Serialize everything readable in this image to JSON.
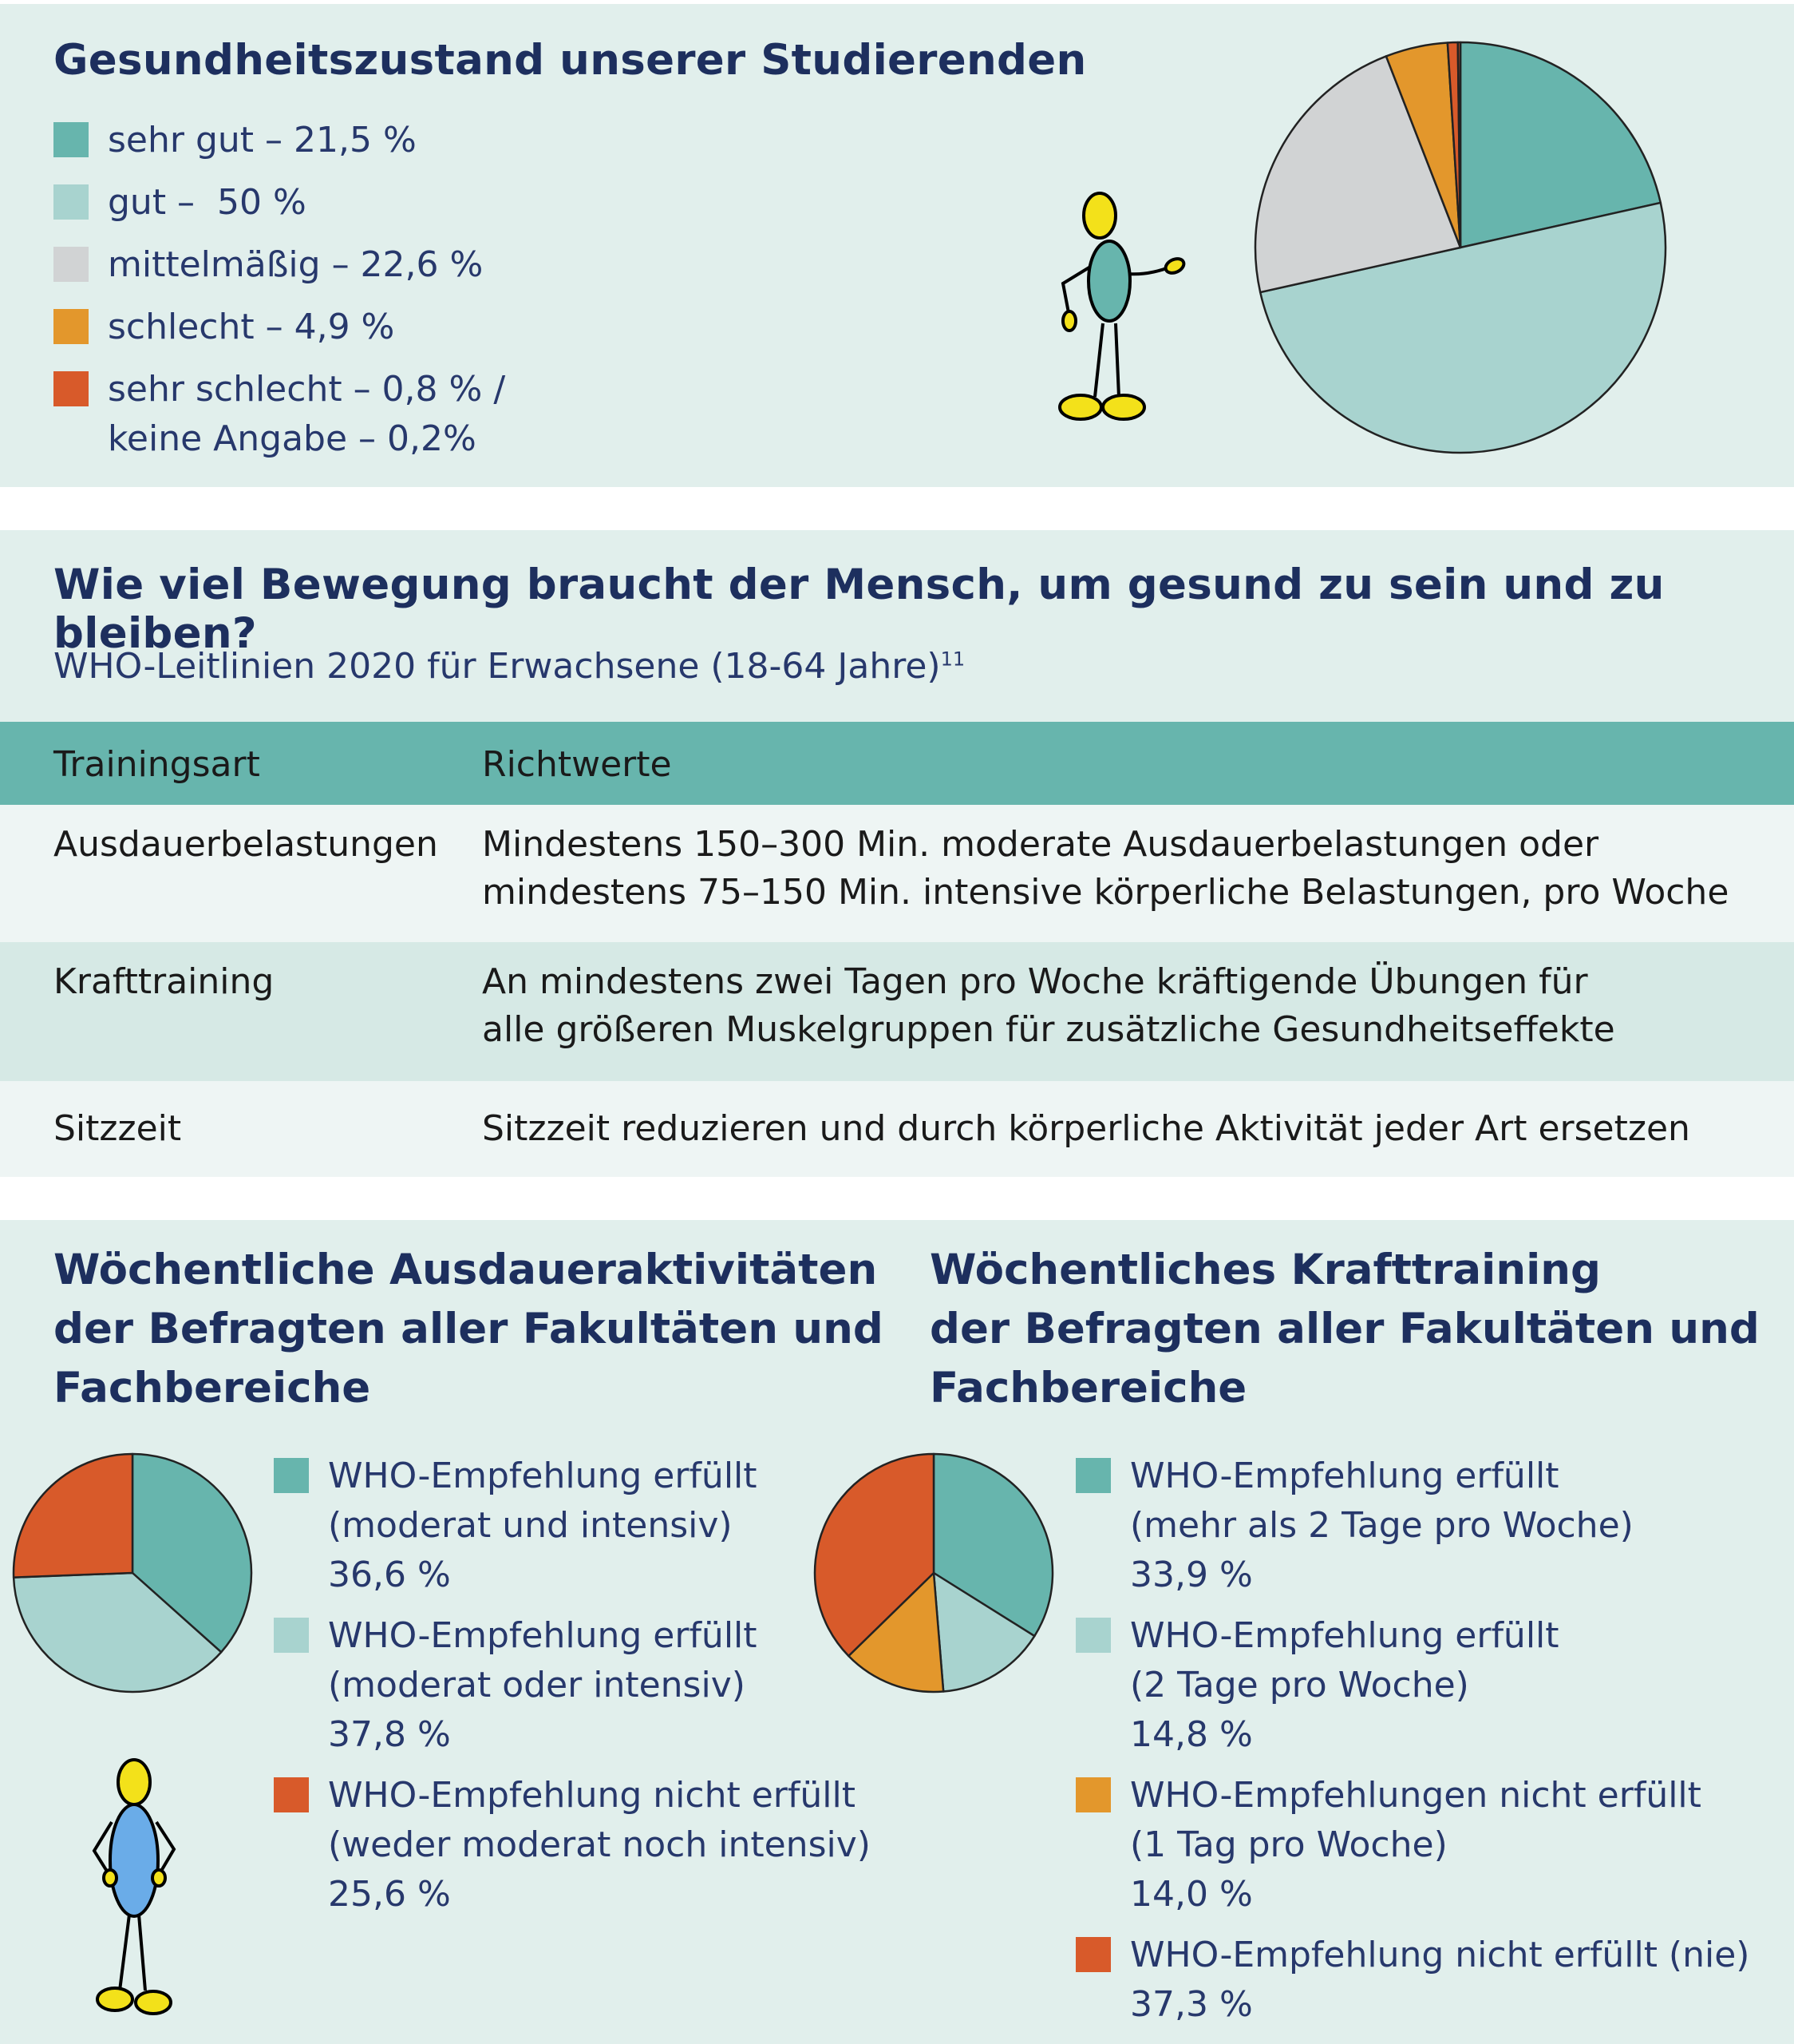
{
  "colors": {
    "teal": "#67b5ad",
    "light_teal": "#a8d3cf",
    "grey": "#d1d3d4",
    "orange": "#e3972c",
    "red": "#d85a2a",
    "navy": "#1d2f5e",
    "panel_bg": "#e1efec"
  },
  "health": {
    "title": "Gesundheitszustand unserer Studierenden",
    "legend": [
      {
        "line1": "sehr gut – 21,5 %",
        "line2": "",
        "color": "#67b5ad"
      },
      {
        "line1": "gut –  50 %",
        "line2": "",
        "color": "#a8d3cf"
      },
      {
        "line1": "mittelmäßig – 22,6 %",
        "line2": "",
        "color": "#d1d3d4"
      },
      {
        "line1": "schlecht – 4,9 %",
        "line2": "",
        "color": "#e3972c"
      },
      {
        "line1": "sehr schlecht – 0,8 % /",
        "line2": "keine Angabe – 0,2%",
        "color": "#d85a2a"
      }
    ]
  },
  "who": {
    "title": "Wie viel Bewegung braucht der Mensch, um gesund zu sein und zu bleiben?",
    "subtitle": "WHO-Leitlinien 2020 für Erwachsene (18-64 Jahre)",
    "subtitle_sup": "11",
    "table": {
      "headers": [
        "Trainingsart",
        "Richtwerte"
      ],
      "rows": [
        {
          "type": "Ausdauerbelastungen",
          "line1": "Mindestens 150–300 Min. moderate Ausdauerbelastungen oder",
          "line2": "mindestens 75–150 Min. intensive körperliche Belastungen, pro Woche"
        },
        {
          "type": "Krafttraining",
          "line1": "An mindestens zwei Tagen pro Woche kräftigende Übungen für",
          "line2": "alle größeren Muskelgruppen für zusätzliche Gesundheitseffekte"
        },
        {
          "type": "Sitzzeit",
          "line1": "Sitzzeit reduzieren und durch körperliche Aktivität jeder Art ersetzen",
          "line2": ""
        }
      ]
    }
  },
  "endurance": {
    "title_lines": [
      "Wöchentliche Ausdaueraktivitäten",
      "der Befragten aller Fakultäten und",
      "Fachbereiche"
    ],
    "legend": [
      {
        "lines": [
          "WHO-Empfehlung erfüllt",
          "(moderat und intensiv)",
          "36,6 %"
        ],
        "color": "#67b5ad"
      },
      {
        "lines": [
          "WHO-Empfehlung erfüllt",
          "(moderat oder intensiv)",
          "37,8 %"
        ],
        "color": "#a8d3cf"
      },
      {
        "lines": [
          "WHO-Empfehlung nicht erfüllt",
          "(weder moderat noch intensiv)",
          "25,6 %"
        ],
        "color": "#d85a2a"
      }
    ]
  },
  "strength": {
    "title_lines": [
      "Wöchentliches Krafttraining",
      "der Befragten aller Fakultäten und",
      "Fachbereiche"
    ],
    "legend": [
      {
        "lines": [
          "WHO-Empfehlung erfüllt",
          "(mehr als 2 Tage pro Woche)",
          "33,9 %"
        ],
        "color": "#67b5ad"
      },
      {
        "lines": [
          "WHO-Empfehlung erfüllt",
          "(2 Tage pro Woche)",
          "14,8 %"
        ],
        "color": "#a8d3cf"
      },
      {
        "lines": [
          "WHO-Empfehlungen nicht erfüllt",
          "(1 Tag pro Woche)",
          "14,0 %"
        ],
        "color": "#e3972c"
      },
      {
        "lines": [
          "WHO-Empfehlung nicht erfüllt (nie)",
          "37,3 %"
        ],
        "color": "#d85a2a"
      }
    ]
  },
  "chart_data": [
    {
      "type": "pie",
      "categories": [
        "sehr gut",
        "gut",
        "mittelmäßig",
        "schlecht",
        "sehr schlecht",
        "keine Angabe"
      ],
      "values": [
        21.5,
        50,
        22.6,
        4.9,
        0.8,
        0.2
      ],
      "colors": [
        "#67b5ad",
        "#a8d3cf",
        "#d1d3d4",
        "#e3972c",
        "#d85a2a",
        "#d85a2a"
      ],
      "title": "Gesundheitszustand unserer Studierenden"
    },
    {
      "type": "pie",
      "categories": [
        "WHO-Empfehlung erfüllt (moderat und intensiv)",
        "WHO-Empfehlung erfüllt (moderat oder intensiv)",
        "WHO-Empfehlung nicht erfüllt (weder moderat noch intensiv)"
      ],
      "values": [
        36.6,
        37.8,
        25.6
      ],
      "colors": [
        "#67b5ad",
        "#a8d3cf",
        "#d85a2a"
      ],
      "title": "Wöchentliche Ausdaueraktivitäten der Befragten aller Fakultäten und Fachbereiche"
    },
    {
      "type": "pie",
      "categories": [
        "WHO-Empfehlung erfüllt (mehr als 2 Tage pro Woche)",
        "WHO-Empfehlung erfüllt (2 Tage pro Woche)",
        "WHO-Empfehlungen nicht erfüllt (1 Tag pro Woche)",
        "WHO-Empfehlung nicht erfüllt (nie)"
      ],
      "values": [
        33.9,
        14.8,
        14.0,
        37.3
      ],
      "colors": [
        "#67b5ad",
        "#a8d3cf",
        "#e3972c",
        "#d85a2a"
      ],
      "title": "Wöchentliches Krafttraining der Befragten aller Fakultäten und Fachbereiche"
    }
  ]
}
